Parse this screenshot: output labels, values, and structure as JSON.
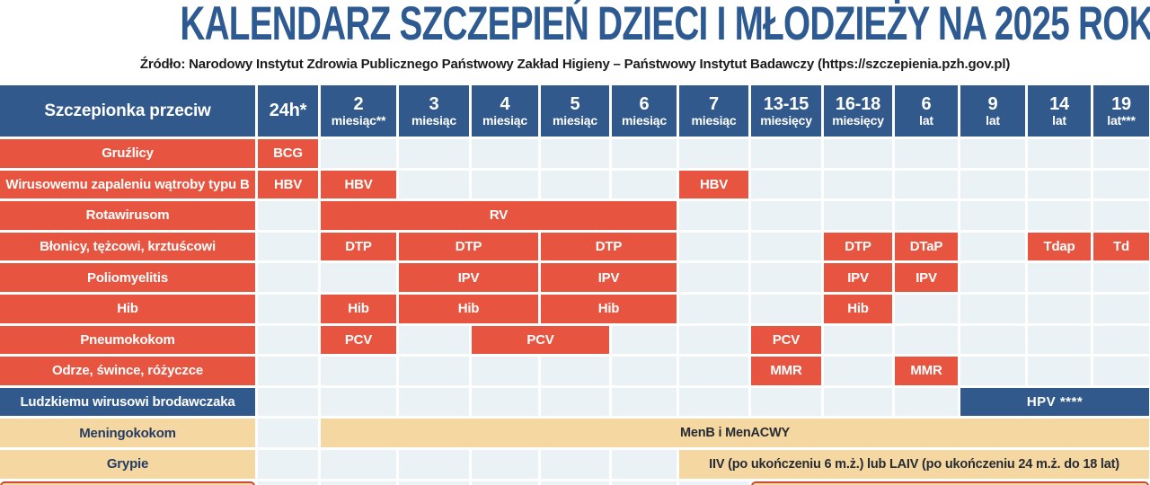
{
  "title": "KALENDARZ SZCZEPIEŃ DZIECI I MŁODZIEŻY NA 2025 ROK",
  "source_line": "Źródło: Narodowy Instytut Zdrowia Publicznego Państwowy Zakład Higieny – Państwowy Instytut Badawczy (https://szczepienia.pzh.gov.pl)",
  "colors": {
    "header_blue": "#31598c",
    "title_blue": "#2e5a92",
    "cell_red": "#e75540",
    "cell_tan": "#f5d7a2",
    "empty_cell": "#eaf2f6",
    "outline_red": "#cf4a32",
    "tan_text": "#243c63"
  },
  "chart_data": {
    "type": "table",
    "title": "KALENDARZ SZCZEPIEŃ DZIECI I MŁODZIEŻY NA 2025 ROK",
    "source": "Źródło: Narodowy Instytut Zdrowia Publicznego Państwowy Zakład Higieny – Państwowy Instytut Badawczy (https://szczepienia.pzh.gov.pl)",
    "corner_label": "Szczepionka przeciw",
    "age_columns": [
      {
        "top": "24h*",
        "bottom": ""
      },
      {
        "top": "2",
        "bottom": "miesiąc**"
      },
      {
        "top": "3",
        "bottom": "miesiąc"
      },
      {
        "top": "4",
        "bottom": "miesiąc"
      },
      {
        "top": "5",
        "bottom": "miesiąc"
      },
      {
        "top": "6",
        "bottom": "miesiąc"
      },
      {
        "top": "7",
        "bottom": "miesiąc"
      },
      {
        "top": "13-15",
        "bottom": "miesięcy"
      },
      {
        "top": "16-18",
        "bottom": "miesięcy"
      },
      {
        "top": "6",
        "bottom": "lat"
      },
      {
        "top": "9",
        "bottom": "lat"
      },
      {
        "top": "14",
        "bottom": "lat"
      },
      {
        "top": "19",
        "bottom": "lat***"
      }
    ],
    "rows": [
      {
        "label": "Gruźlicy",
        "label_style": "red",
        "blocks": [
          {
            "col": 1,
            "span": 1,
            "text": "BCG",
            "style": "red"
          }
        ]
      },
      {
        "label": "Wirusowemu zapaleniu wątroby typu B",
        "label_style": "red",
        "blocks": [
          {
            "col": 1,
            "span": 1,
            "text": "HBV",
            "style": "red"
          },
          {
            "col": 2,
            "span": 1,
            "text": "HBV",
            "style": "red"
          },
          {
            "col": 7,
            "span": 1,
            "text": "HBV",
            "style": "red"
          }
        ]
      },
      {
        "label": "Rotawirusom",
        "label_style": "red",
        "blocks": [
          {
            "col": 2,
            "span": 5,
            "text": "RV",
            "style": "red"
          }
        ]
      },
      {
        "label": "Błonicy, tężcowi, krztuścowi",
        "label_style": "red",
        "blocks": [
          {
            "col": 2,
            "span": 1,
            "text": "DTP",
            "style": "red"
          },
          {
            "col": 3,
            "span": 2,
            "text": "DTP",
            "style": "red"
          },
          {
            "col": 5,
            "span": 2,
            "text": "DTP",
            "style": "red"
          },
          {
            "col": 9,
            "span": 1,
            "text": "DTP",
            "style": "red"
          },
          {
            "col": 10,
            "span": 1,
            "text": "DTaP",
            "style": "red"
          },
          {
            "col": 12,
            "span": 1,
            "text": "Tdap",
            "style": "red"
          },
          {
            "col": 13,
            "span": 1,
            "text": "Td",
            "style": "red"
          }
        ]
      },
      {
        "label": "Poliomyelitis",
        "label_style": "red",
        "blocks": [
          {
            "col": 3,
            "span": 2,
            "text": "IPV",
            "style": "red"
          },
          {
            "col": 5,
            "span": 2,
            "text": "IPV",
            "style": "red"
          },
          {
            "col": 9,
            "span": 1,
            "text": "IPV",
            "style": "red"
          },
          {
            "col": 10,
            "span": 1,
            "text": "IPV",
            "style": "red"
          }
        ]
      },
      {
        "label": "Hib",
        "label_style": "red",
        "blocks": [
          {
            "col": 2,
            "span": 1,
            "text": "Hib",
            "style": "red"
          },
          {
            "col": 3,
            "span": 2,
            "text": "Hib",
            "style": "red"
          },
          {
            "col": 5,
            "span": 2,
            "text": "Hib",
            "style": "red"
          },
          {
            "col": 9,
            "span": 1,
            "text": "Hib",
            "style": "red"
          }
        ]
      },
      {
        "label": "Pneumokokom",
        "label_style": "red",
        "blocks": [
          {
            "col": 2,
            "span": 1,
            "text": "PCV",
            "style": "red"
          },
          {
            "col": 4,
            "span": 2,
            "text": "PCV",
            "style": "red"
          },
          {
            "col": 8,
            "span": 1,
            "text": "PCV",
            "style": "red"
          }
        ]
      },
      {
        "label": "Odrze, śwince, różyczce",
        "label_style": "red",
        "blocks": [
          {
            "col": 8,
            "span": 1,
            "text": "MMR",
            "style": "red"
          },
          {
            "col": 10,
            "span": 1,
            "text": "MMR",
            "style": "red"
          }
        ]
      },
      {
        "label": "Ludzkiemu wirusowi brodawczaka",
        "label_style": "blue",
        "blocks": [
          {
            "col": 11,
            "span": 3,
            "text": "HPV ****",
            "style": "blue"
          }
        ]
      },
      {
        "label": "Meningokokom",
        "label_style": "tan",
        "blocks": [
          {
            "col": 2,
            "span": 12,
            "text": "MenB i MenACWY",
            "style": "tan"
          }
        ]
      },
      {
        "label": "Grypie",
        "label_style": "tan",
        "blocks": [
          {
            "col": 7,
            "span": 7,
            "text": "IIV (po ukończeniu 6 m.ż.) lub LAIV (po ukończeniu 24 m.ż. do 18 lat)",
            "style": "tan"
          }
        ]
      },
      {
        "label": "",
        "label_style": "outlined",
        "blocks": [
          {
            "col": 8,
            "span": 6,
            "text": "",
            "style": "outlined"
          }
        ]
      }
    ]
  }
}
